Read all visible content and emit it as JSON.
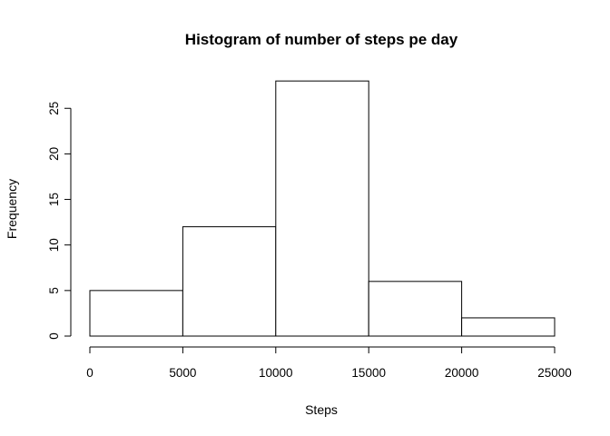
{
  "chart_data": {
    "type": "bar",
    "title": "Histogram of number of steps pe day",
    "xlabel": "Steps",
    "ylabel": "Frequency",
    "bins": [
      [
        0,
        5000
      ],
      [
        5000,
        10000
      ],
      [
        10000,
        15000
      ],
      [
        15000,
        20000
      ],
      [
        20000,
        25000
      ]
    ],
    "values": [
      5,
      12,
      28,
      6,
      2
    ],
    "xlim": [
      0,
      25000
    ],
    "ylim": [
      0,
      28
    ],
    "x_ticks": [
      0,
      5000,
      10000,
      15000,
      20000,
      25000
    ],
    "x_tick_labels": [
      "0",
      "5000",
      "10000",
      "15000",
      "20000",
      "25000"
    ],
    "y_ticks": [
      0,
      5,
      10,
      15,
      20,
      25
    ],
    "y_tick_labels": [
      "0",
      "5",
      "10",
      "15",
      "20",
      "25"
    ],
    "grid": false,
    "legend": "none",
    "colors": {
      "fill": "#ffffff",
      "stroke": "#000000"
    }
  }
}
